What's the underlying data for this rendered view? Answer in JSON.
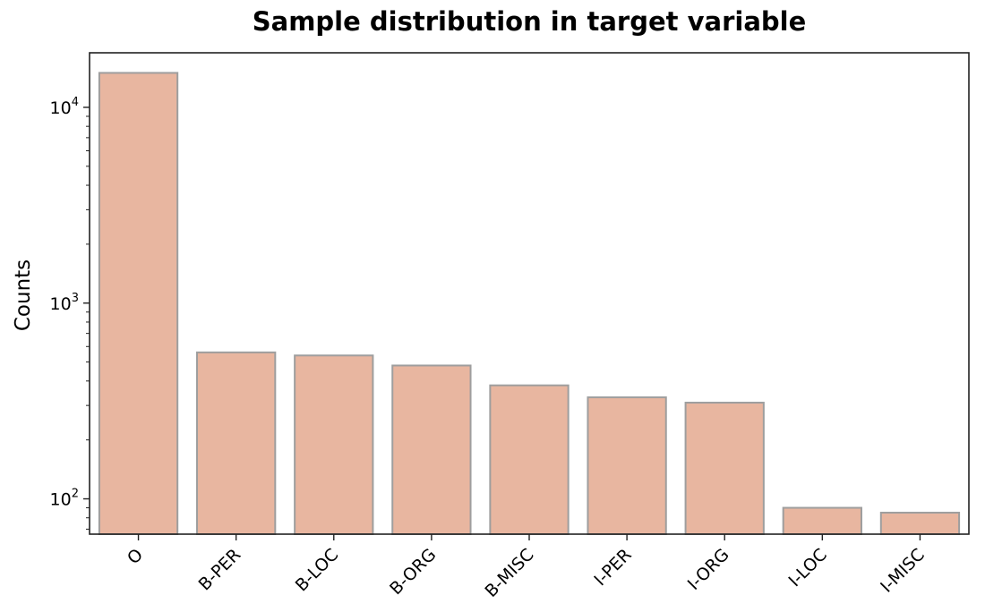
{
  "chart_data": {
    "type": "bar",
    "title": "Sample distribution in target variable",
    "xlabel": "",
    "ylabel": "Counts",
    "yscale": "log",
    "ylim": [
      66,
      19000
    ],
    "yticks": [
      100,
      1000,
      10000
    ],
    "categories": [
      "O",
      "B-PER",
      "B-LOC",
      "B-ORG",
      "B-MISC",
      "I-PER",
      "I-ORG",
      "I-LOC",
      "I-MISC"
    ],
    "values": [
      15000,
      560,
      540,
      480,
      380,
      330,
      310,
      90,
      85
    ],
    "bar_color": "#e8b6a0",
    "bar_edge_color": "#9e9e9e",
    "grid": false,
    "legend": "none"
  }
}
